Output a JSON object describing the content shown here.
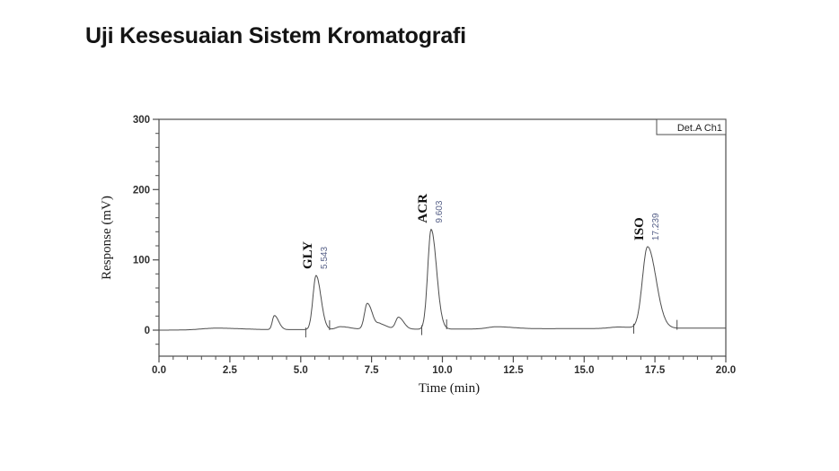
{
  "slide": {
    "title": "Uji Kesesuaian Sistem Kromatografi",
    "background": "#ffffff"
  },
  "chart_data": {
    "type": "line",
    "kind": "chromatogram",
    "detector_label": "Det.A Ch1",
    "xlabel": "Time (min)",
    "ylabel": "Response (mV)",
    "xlim": [
      0.0,
      20.0
    ],
    "ylim": [
      -37,
      300
    ],
    "x_major_values": [
      0,
      2.5,
      5,
      7.5,
      10,
      12.5,
      15,
      17.5,
      20
    ],
    "x_major_labels": [
      "0.0",
      "2.5",
      "5.0",
      "7.5",
      "10.0",
      "12.5",
      "15.0",
      "17.5",
      "20.0"
    ],
    "x_minor_step": 0.5,
    "y_major_values": [
      0,
      100,
      200,
      300
    ],
    "y_major_labels": [
      "0",
      "100",
      "200",
      "300"
    ],
    "y_minor_step": 20,
    "grid": false,
    "legend": null,
    "colors": {
      "trace": "#4d4d4d",
      "frame": "#4d4d4d",
      "peak_name": "#111111",
      "retention_time": "#555f87",
      "tick_label": "#2e2e2e",
      "axis_title": "#1a1a1a"
    },
    "named_peaks": [
      {
        "name": "GLY",
        "retention_time": 5.543,
        "rt_label": "5.543",
        "height_mV": 77,
        "sigma_left": 0.11,
        "sigma_right": 0.17,
        "integration_start": 5.18,
        "integration_end": 6.02
      },
      {
        "name": "ACR",
        "retention_time": 9.603,
        "rt_label": "9.603",
        "height_mV": 142,
        "sigma_left": 0.12,
        "sigma_right": 0.19,
        "integration_start": 9.27,
        "integration_end": 10.15
      },
      {
        "name": "ISO",
        "retention_time": 17.239,
        "rt_label": "17.239",
        "height_mV": 116,
        "sigma_left": 0.18,
        "sigma_right": 0.3,
        "integration_start": 16.75,
        "integration_end": 18.28
      }
    ],
    "unlabeled_peaks": [
      {
        "retention_time": 2.0,
        "height_mV": 2.5,
        "sigma_left": 0.5,
        "sigma_right": 0.9
      },
      {
        "retention_time": 4.07,
        "height_mV": 20,
        "sigma_left": 0.07,
        "sigma_right": 0.15
      },
      {
        "retention_time": 6.4,
        "height_mV": 4,
        "sigma_left": 0.15,
        "sigma_right": 0.35
      },
      {
        "retention_time": 7.35,
        "height_mV": 37,
        "sigma_left": 0.1,
        "sigma_right": 0.18
      },
      {
        "retention_time": 7.8,
        "height_mV": 7,
        "sigma_left": 0.1,
        "sigma_right": 0.25
      },
      {
        "retention_time": 8.45,
        "height_mV": 17,
        "sigma_left": 0.1,
        "sigma_right": 0.18
      },
      {
        "retention_time": 11.9,
        "height_mV": 3,
        "sigma_left": 0.3,
        "sigma_right": 0.6
      },
      {
        "retention_time": 16.2,
        "height_mV": 2,
        "sigma_left": 0.3,
        "sigma_right": 0.5
      }
    ],
    "baseline_drift_mV_per_min": 0.15
  }
}
